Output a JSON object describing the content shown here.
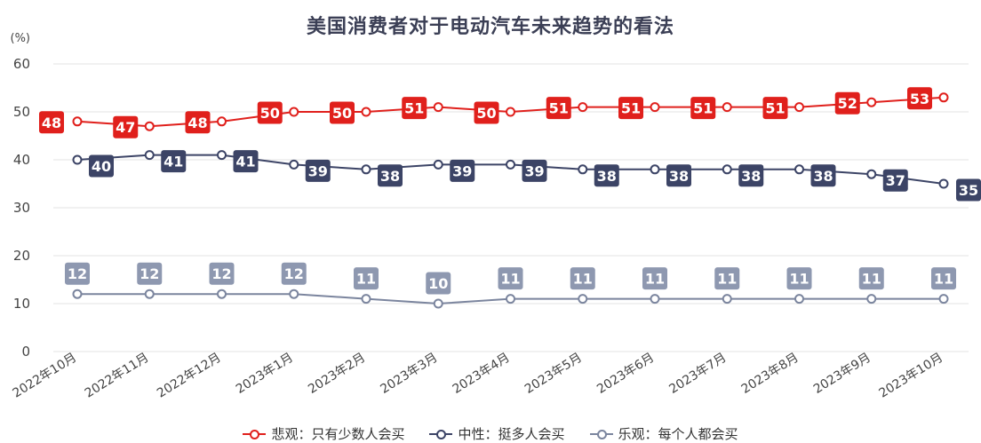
{
  "chart_data": {
    "type": "line",
    "title": "美国消费者对于电动汽车未来趋势的看法",
    "ylabel": "(%)",
    "ylim": [
      0,
      60
    ],
    "yticks": [
      0,
      10,
      20,
      30,
      40,
      50,
      60
    ],
    "grid": true,
    "legend_position": "bottom-center",
    "categories": [
      "2022年10月",
      "2022年11月",
      "2022年12月",
      "2023年1月",
      "2023年2月",
      "2023年3月",
      "2023年4月",
      "2023年5月",
      "2023年6月",
      "2023年7月",
      "2023年8月",
      "2023年9月",
      "2023年10月"
    ],
    "series": [
      {
        "name": "悲观：只有少数人会买",
        "color": "#e0201c",
        "label_style": "red",
        "values": [
          48,
          47,
          48,
          50,
          50,
          51,
          50,
          51,
          51,
          51,
          51,
          52,
          53
        ]
      },
      {
        "name": "中性：挺多人会买",
        "color": "#3c4466",
        "label_style": "navy",
        "values": [
          40,
          41,
          41,
          39,
          38,
          39,
          39,
          38,
          38,
          38,
          38,
          37,
          35
        ]
      },
      {
        "name": "乐观：每个人都会买",
        "color": "#7b859e",
        "label_style": "slate",
        "values": [
          12,
          12,
          12,
          12,
          11,
          10,
          11,
          11,
          11,
          11,
          11,
          11,
          11
        ]
      }
    ]
  }
}
